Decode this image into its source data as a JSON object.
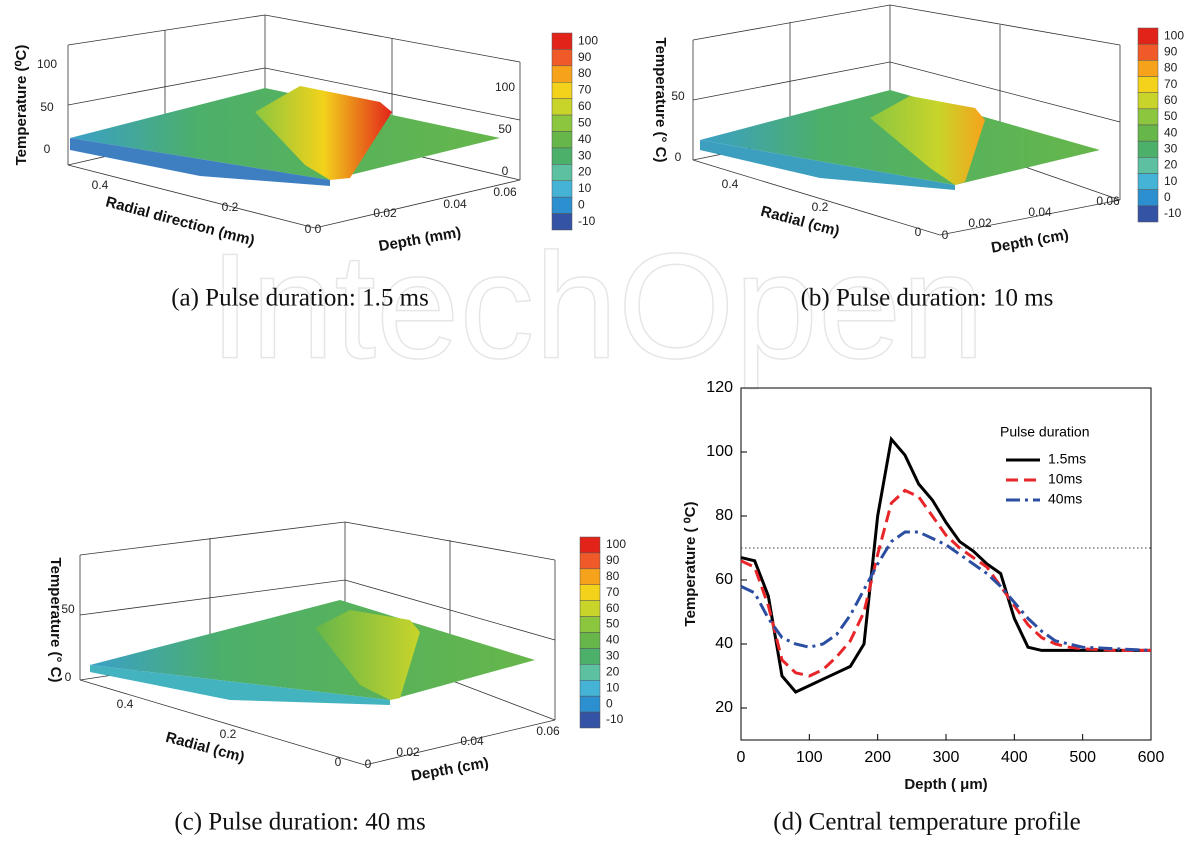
{
  "watermark": "IntechOpen",
  "chart_data": [
    {
      "type": "surface",
      "caption": "(a) Pulse duration: 1.5 ms",
      "zlabel": "Temperature (⁰C)",
      "xlabel": "Radial direction (mm)",
      "ylabel": "Depth (mm)",
      "xticks": [
        0.4,
        0.2,
        0
      ],
      "yticks": [
        0,
        0.02,
        0.04,
        0.06
      ],
      "zticks": [
        0,
        50,
        100
      ],
      "z2ticks": [
        0,
        50,
        100
      ],
      "colorbar": {
        "ticks": [
          100,
          90,
          80,
          70,
          60,
          50,
          40,
          30,
          20,
          10,
          0,
          -10
        ],
        "colors": [
          "#e2231a",
          "#f05a28",
          "#f7a21b",
          "#f2d21b",
          "#c8d42a",
          "#8cc63f",
          "#66b64a",
          "#4caf6a",
          "#5dc0a0",
          "#44b3d6",
          "#2b8fd0",
          "#3453a4"
        ]
      }
    },
    {
      "type": "surface",
      "caption": "(b) Pulse duration: 10 ms",
      "zlabel": "Temperature (° C)",
      "xlabel": "Radial (cm)",
      "ylabel": "Depth (cm)",
      "xticks": [
        0.4,
        0.2,
        0
      ],
      "yticks": [
        0,
        0.02,
        0.04,
        0.06
      ],
      "zticks": [
        0,
        50
      ],
      "colorbar": {
        "ticks": [
          100,
          90,
          80,
          70,
          60,
          50,
          40,
          30,
          20,
          10,
          0,
          -10
        ],
        "colors": [
          "#e2231a",
          "#f05a28",
          "#f7a21b",
          "#f2d21b",
          "#c8d42a",
          "#8cc63f",
          "#66b64a",
          "#4caf6a",
          "#5dc0a0",
          "#44b3d6",
          "#2b8fd0",
          "#3453a4"
        ]
      }
    },
    {
      "type": "surface",
      "caption": "(c) Pulse duration: 40 ms",
      "zlabel": "Temperature (° C)",
      "xlabel": "Radial (cm)",
      "ylabel": "Depth (cm)",
      "xticks": [
        0.4,
        0.2,
        0
      ],
      "yticks": [
        0,
        0.02,
        0.04,
        0.06
      ],
      "zticks": [
        0,
        50
      ],
      "colorbar": {
        "ticks": [
          100,
          90,
          80,
          70,
          60,
          50,
          40,
          30,
          20,
          10,
          0,
          -10
        ],
        "colors": [
          "#e2231a",
          "#f05a28",
          "#f7a21b",
          "#f2d21b",
          "#c8d42a",
          "#8cc63f",
          "#66b64a",
          "#4caf6a",
          "#5dc0a0",
          "#44b3d6",
          "#2b8fd0",
          "#3453a4"
        ]
      }
    },
    {
      "type": "line",
      "caption": "(d) Central temperature profile",
      "xlabel": "Depth ( μm)",
      "ylabel": "Temperature ( ⁰C)",
      "legend_title": "Pulse duration",
      "xlim": [
        0,
        600
      ],
      "ylim": [
        10,
        120
      ],
      "xticks": [
        0,
        100,
        200,
        300,
        400,
        500,
        600
      ],
      "yticks": [
        20,
        40,
        60,
        80,
        100,
        120
      ],
      "reference_line": 70,
      "x": [
        0,
        20,
        40,
        60,
        80,
        100,
        120,
        140,
        160,
        180,
        200,
        220,
        240,
        260,
        280,
        300,
        320,
        340,
        360,
        380,
        400,
        420,
        440,
        460,
        480,
        500,
        550,
        600
      ],
      "series": [
        {
          "name": "1.5ms",
          "color": "#000000",
          "dash": "solid",
          "values": [
            67,
            66,
            55,
            30,
            25,
            27,
            29,
            31,
            33,
            40,
            80,
            104,
            99,
            90,
            85,
            78,
            72,
            69,
            65,
            62,
            48,
            39,
            38,
            38,
            38,
            38,
            38,
            38
          ]
        },
        {
          "name": "10ms",
          "color": "#e8262a",
          "dash": "dashed",
          "values": [
            66,
            64,
            52,
            35,
            31,
            30,
            32,
            36,
            41,
            50,
            68,
            84,
            88,
            86,
            80,
            74,
            70,
            67,
            64,
            58,
            52,
            46,
            42,
            40,
            39,
            38.5,
            38,
            38
          ]
        },
        {
          "name": "40ms",
          "color": "#2b4ea2",
          "dash": "dashdot",
          "values": [
            58,
            56,
            48,
            42,
            40,
            39,
            40,
            43,
            49,
            57,
            65,
            72,
            75,
            75,
            73,
            71,
            68,
            65,
            62,
            58,
            53,
            48,
            44,
            41,
            40,
            39,
            38.5,
            38
          ]
        }
      ]
    }
  ]
}
